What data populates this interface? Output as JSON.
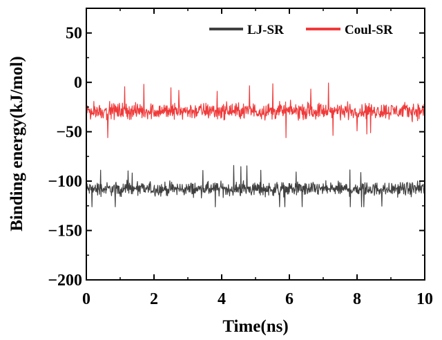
{
  "chart_data": {
    "type": "line",
    "xlabel": "Time(ns)",
    "ylabel": "Binding energy(kJ/mol)",
    "xlim": [
      0,
      10
    ],
    "ylim": [
      -200,
      75
    ],
    "x_ticks": [
      0,
      2,
      4,
      6,
      8,
      10
    ],
    "x_tick_labels": [
      "0",
      "2",
      "4",
      "6",
      "8",
      "10"
    ],
    "y_ticks": [
      50,
      0,
      -50,
      -100,
      -150,
      -200
    ],
    "y_tick_labels": [
      "50",
      "0",
      "−50",
      "−100",
      "−150",
      "−200"
    ],
    "grid": false,
    "legend_position": "top-right",
    "series": [
      {
        "name": "LJ-SR",
        "color": "#404040",
        "mean": -108,
        "noise_amplitude": 10,
        "min": -126,
        "max": -75
      },
      {
        "name": "Coul-SR",
        "color": "#f03a3a",
        "mean": -29,
        "noise_amplitude": 12,
        "min": -56,
        "max": 0
      }
    ]
  }
}
